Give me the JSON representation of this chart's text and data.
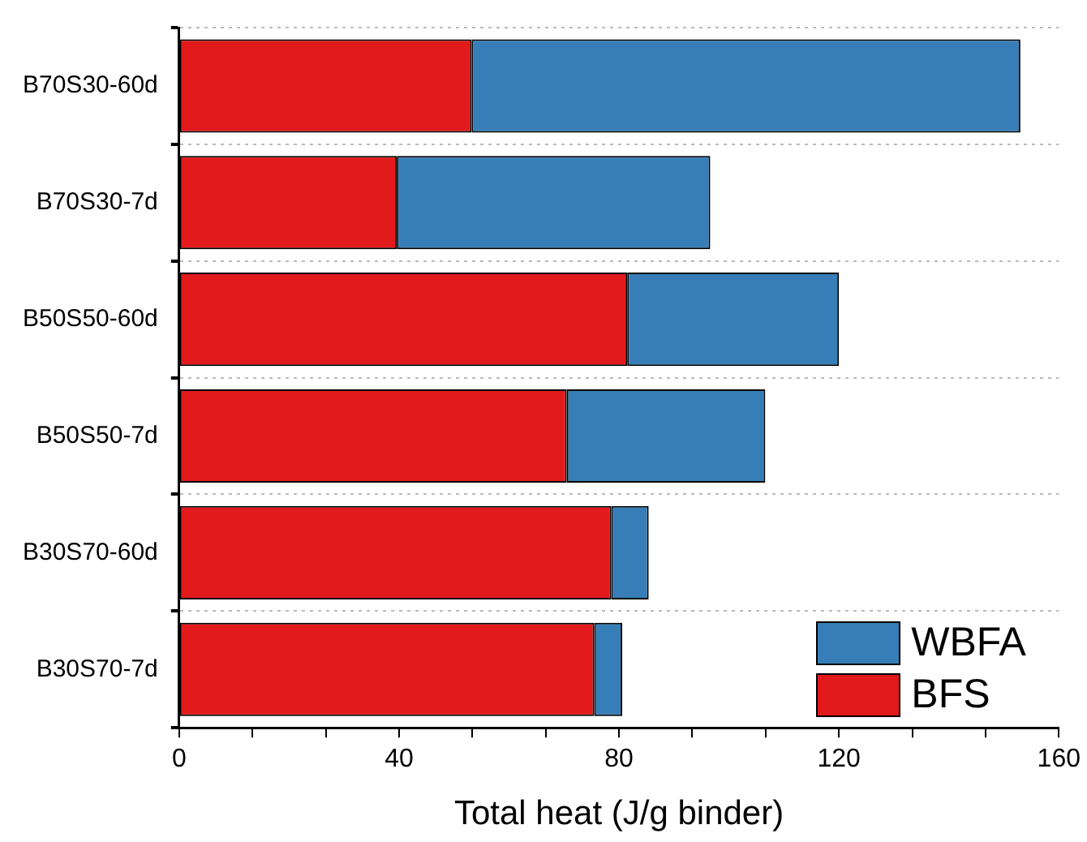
{
  "chart_data": {
    "type": "bar",
    "orientation": "horizontal",
    "stacked": true,
    "categories": [
      "B70S30-60d",
      "B70S30-7d",
      "B50S50-60d",
      "B50S50-7d",
      "B30S70-60d",
      "B30S70-7d"
    ],
    "series": [
      {
        "name": "BFS",
        "color": "#e31a1c",
        "values": [
          53.2,
          39.6,
          81.5,
          70.5,
          78.6,
          75.5
        ]
      },
      {
        "name": "WBFA",
        "color": "#377eb8",
        "values": [
          99.8,
          57.0,
          38.5,
          36.1,
          6.8,
          5.1
        ]
      }
    ],
    "xlabel": "Total heat (J/g binder)",
    "xlim": [
      0,
      160
    ],
    "xticks": [
      0,
      {
        "value": 13.33,
        "label": null
      },
      {
        "value": 26.67,
        "label": null
      },
      40,
      {
        "value": 53.33,
        "label": null
      },
      {
        "value": 66.67,
        "label": null
      },
      80,
      {
        "value": 93.33,
        "label": null
      },
      {
        "value": 106.67,
        "label": null
      },
      120,
      {
        "value": 133.33,
        "label": null
      },
      {
        "value": 146.67,
        "label": null
      },
      160
    ],
    "grid": "y",
    "legend": "bottom right"
  }
}
